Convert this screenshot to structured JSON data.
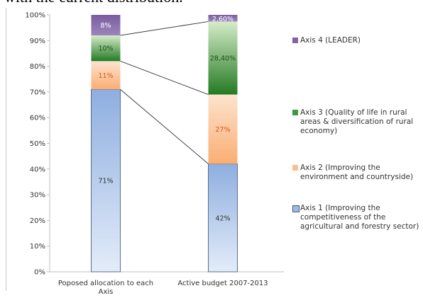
{
  "header_snippet": "with the current distribution.",
  "chart_data": {
    "type": "bar",
    "stacked": true,
    "categories": [
      "Poposed allocation to each Axis",
      "Active budget 2007-2013"
    ],
    "series": [
      {
        "name": "Axis 1 (Improving the competitiveness of the agricultural and forestry sector)",
        "values": [
          71,
          42
        ],
        "labels": [
          "71%",
          "42%"
        ],
        "color": "#9db9e6"
      },
      {
        "name": "Axis 2 (Improving the environment and countryside)",
        "values": [
          11,
          27
        ],
        "labels": [
          "11%",
          "27%"
        ],
        "color": "#fbbf8a"
      },
      {
        "name": "Axis 3 (Quality of life in rural areas & diversification of rural economy)",
        "values": [
          10,
          28.4
        ],
        "labels": [
          "10%",
          "28,40%"
        ],
        "color": "#3f9a3f"
      },
      {
        "name": "Axis 4 (LEADER)",
        "values": [
          8,
          2.6
        ],
        "labels": [
          "8%",
          "2,60%"
        ],
        "color": "#8064a2"
      }
    ],
    "ylim": [
      0,
      100
    ],
    "y_ticks": [
      "0%",
      "10%",
      "20%",
      "30%",
      "40%",
      "50%",
      "60%",
      "70%",
      "80%",
      "90%",
      "100%"
    ],
    "legend_position": "right",
    "connector_lines": true
  }
}
